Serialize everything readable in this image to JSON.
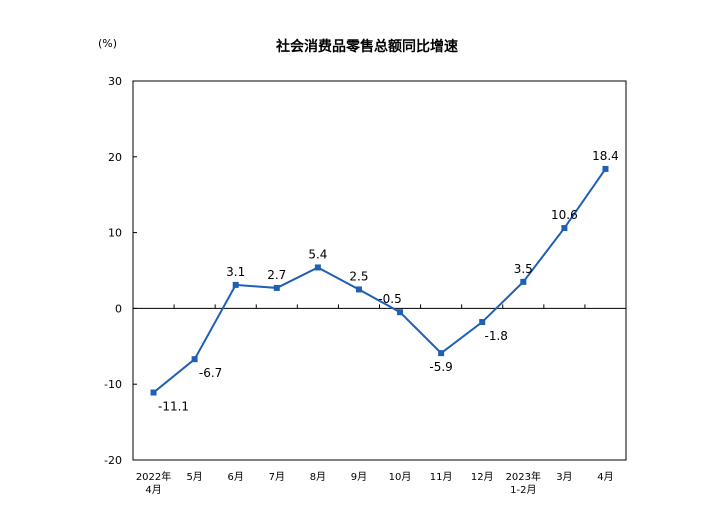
{
  "chart_data": {
    "type": "line",
    "title": "社会消费品零售总额同比增速",
    "unit_label": "(%)",
    "categories": [
      [
        "2022年",
        "4月"
      ],
      [
        "5月"
      ],
      [
        "6月"
      ],
      [
        "7月"
      ],
      [
        "8月"
      ],
      [
        "9月"
      ],
      [
        "10月"
      ],
      [
        "11月"
      ],
      [
        "12月"
      ],
      [
        "2023年",
        "1-2月"
      ],
      [
        "3月"
      ],
      [
        "4月"
      ]
    ],
    "values": [
      -11.1,
      -6.7,
      3.1,
      2.7,
      5.4,
      2.5,
      -0.5,
      -5.9,
      -1.8,
      3.5,
      10.6,
      18.4
    ],
    "data_labels": [
      "-11.1",
      "-6.7",
      "3.1",
      "2.7",
      "5.4",
      "2.5",
      "-0.5",
      "-5.9",
      "-1.8",
      "3.5",
      "10.6",
      "18.4"
    ],
    "yticks": [
      "30",
      "20",
      "10",
      "0",
      "-10",
      "-20"
    ],
    "ylim": [
      -20,
      30
    ],
    "grid": false,
    "colors": {
      "series": "#1f5fb4",
      "axis": "#000000"
    }
  }
}
